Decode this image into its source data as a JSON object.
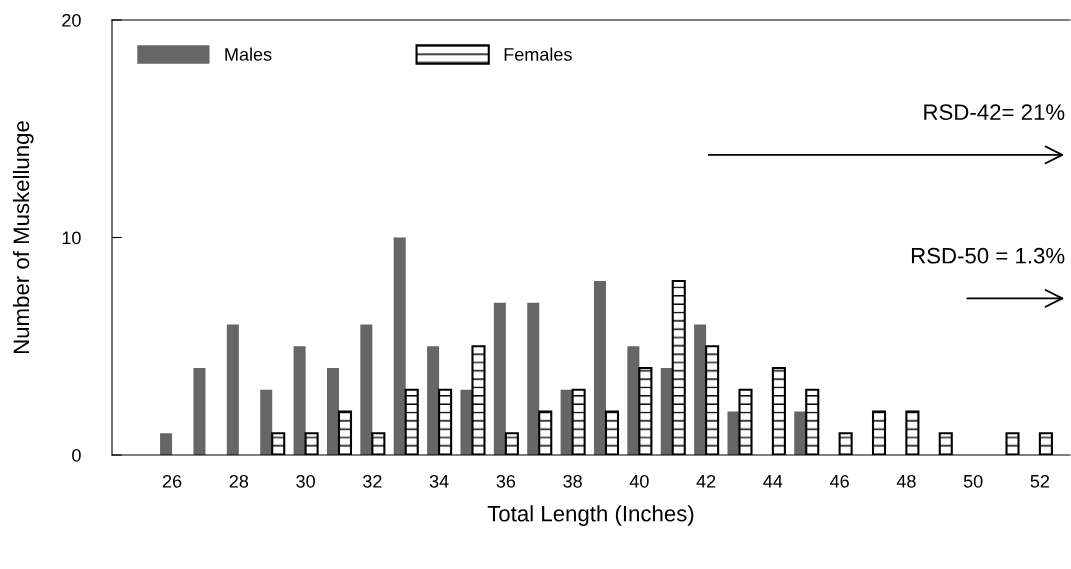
{
  "chart_data": {
    "type": "bar",
    "xlabel": "Total Length (Inches)",
    "ylabel": "Number of Muskellunge",
    "x": [
      26,
      27,
      28,
      29,
      30,
      31,
      32,
      33,
      34,
      35,
      36,
      37,
      38,
      39,
      40,
      41,
      42,
      43,
      44,
      45,
      46,
      47,
      48,
      49,
      50,
      51,
      52
    ],
    "series": [
      {
        "name": "Males",
        "color": "#666666",
        "values": [
          1,
          4,
          6,
          3,
          5,
          4,
          6,
          10,
          5,
          3,
          7,
          7,
          3,
          8,
          5,
          4,
          6,
          2,
          0,
          2,
          0,
          0,
          0,
          0,
          0,
          0,
          0
        ]
      },
      {
        "name": "Females",
        "color": "#000000",
        "values": [
          0,
          0,
          0,
          1,
          1,
          2,
          1,
          3,
          3,
          5,
          1,
          2,
          3,
          2,
          4,
          8,
          5,
          3,
          4,
          3,
          1,
          2,
          2,
          1,
          0,
          1,
          1
        ]
      }
    ],
    "xlim": [
      24.2,
      52.9
    ],
    "xticks": [
      26,
      28,
      30,
      32,
      34,
      36,
      38,
      40,
      42,
      44,
      46,
      48,
      50,
      52
    ],
    "ylim": [
      0,
      20
    ],
    "yticks": [
      0,
      10,
      20
    ],
    "grid": false,
    "legend": "top left",
    "annotations": [
      "RSD-42= 21%",
      "RSD-50 = 1.3%"
    ]
  }
}
